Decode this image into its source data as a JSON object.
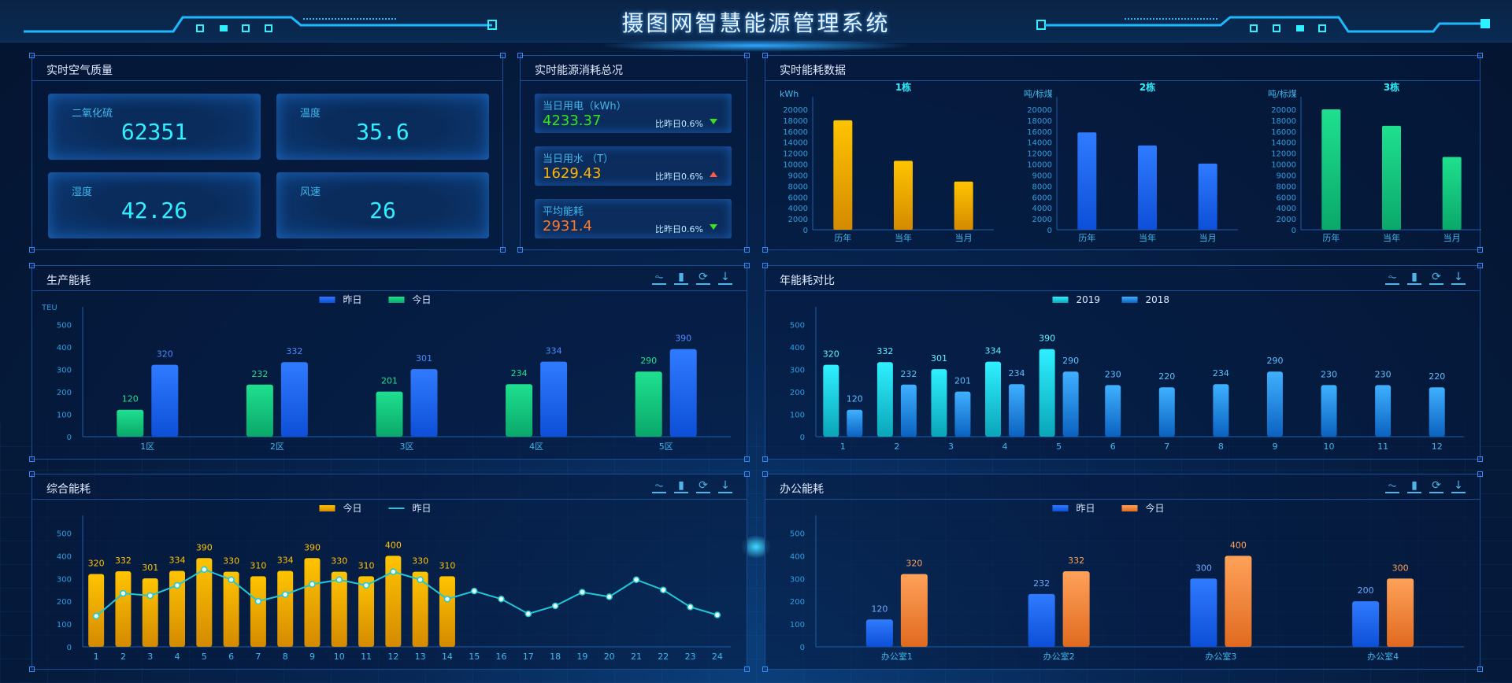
{
  "header": {
    "title": "摄图网智慧能源管理系统"
  },
  "air_quality": {
    "title": "实时空气质量",
    "items": [
      {
        "label": "二氧化硫",
        "value": "62351"
      },
      {
        "label": "温度",
        "value": "35.6"
      },
      {
        "label": "湿度",
        "value": "42.26"
      },
      {
        "label": "风速",
        "value": "26"
      }
    ]
  },
  "energy_summary": {
    "title": "实时能源消耗总况",
    "items": [
      {
        "label": "当日用电（kWh）",
        "value": "4233.37",
        "compare": "比昨日0.6%",
        "trend": "down",
        "color": "#35e51b"
      },
      {
        "label": "当日用水 （T）",
        "value": "1629.43",
        "compare": "比昨日0.6%",
        "trend": "up",
        "color": "#ffb400"
      },
      {
        "label": "平均能耗",
        "value": "2931.4",
        "compare": "比昨日0.6%",
        "trend": "down",
        "color": "#ff7a2a"
      }
    ]
  },
  "toolbar_icons": [
    "pulse-icon",
    "bar-chart-icon",
    "refresh-icon",
    "download-icon"
  ],
  "chart_data": {
    "realtime": {
      "type": "bar",
      "title": "实时能耗数据",
      "yticks": [
        0,
        2000,
        4000,
        6000,
        8000,
        9000,
        10000,
        12000,
        14000,
        16000,
        18000,
        20000
      ],
      "subcharts": [
        {
          "title": "1栋",
          "unit": "kWh",
          "categories": [
            "历年",
            "当年",
            "当月"
          ],
          "values": [
            18000,
            10600,
            8400
          ],
          "colors": [
            "#ffc400",
            "#d48a00"
          ]
        },
        {
          "title": "2栋",
          "unit": "吨/标煤",
          "categories": [
            "历年",
            "当年",
            "当月"
          ],
          "values": [
            15800,
            13400,
            10100
          ],
          "colors": [
            "#2f7bff",
            "#0d4fd8"
          ]
        },
        {
          "title": "3栋",
          "unit": "吨/标煤",
          "categories": [
            "历年",
            "当年",
            "当月"
          ],
          "values": [
            20000,
            17000,
            11300
          ],
          "colors": [
            "#1fe08f",
            "#0aa86a"
          ]
        }
      ]
    },
    "production": {
      "type": "bar",
      "title": "生产能耗",
      "ylabel": "TEU",
      "ylim": [
        0,
        500
      ],
      "yticks": [
        0,
        100,
        200,
        300,
        400,
        500
      ],
      "categories": [
        "1区",
        "2区",
        "3区",
        "4区",
        "5区"
      ],
      "legend": [
        {
          "name": "昨日",
          "colors": [
            "#2f7bff",
            "#0d4fd8"
          ]
        },
        {
          "name": "今日",
          "colors": [
            "#1fe08f",
            "#0aa86a"
          ]
        }
      ],
      "series": [
        {
          "name": "今日",
          "type": "bar",
          "values": [
            120,
            232,
            201,
            234,
            290
          ],
          "colors": [
            "#1fe08f",
            "#0aa86a"
          ],
          "label_color": "#1fe08f"
        },
        {
          "name": "昨日",
          "type": "bar",
          "values": [
            320,
            332,
            301,
            334,
            390
          ],
          "colors": [
            "#2f7bff",
            "#0d4fd8"
          ],
          "label_color": "#4a8cff"
        }
      ]
    },
    "annual": {
      "type": "bar",
      "title": "年能耗对比",
      "ylim": [
        0,
        500
      ],
      "yticks": [
        0,
        100,
        200,
        300,
        400,
        500
      ],
      "categories": [
        "1",
        "2",
        "3",
        "4",
        "5",
        "6",
        "7",
        "8",
        "9",
        "10",
        "11",
        "12"
      ],
      "legend": [
        {
          "name": "2019",
          "colors": [
            "#2ff0ff",
            "#0aa5b8"
          ]
        },
        {
          "name": "2018",
          "colors": [
            "#3fb0ff",
            "#0b62c0"
          ]
        }
      ],
      "series": [
        {
          "name": "2019",
          "type": "bar",
          "values": [
            320,
            332,
            301,
            334,
            390,
            null,
            null,
            null,
            null,
            null,
            null,
            null
          ],
          "colors": [
            "#2ff0ff",
            "#0aa5b8"
          ],
          "label_color": "#5ff3ff"
        },
        {
          "name": "2018",
          "type": "bar",
          "values": [
            120,
            232,
            201,
            234,
            290,
            230,
            220,
            234,
            290,
            230,
            230,
            220
          ],
          "colors": [
            "#3fb0ff",
            "#0b62c0"
          ],
          "label_color": "#5fc0ff"
        }
      ]
    },
    "composite": {
      "type": "bar+line",
      "title": "综合能耗",
      "ylim": [
        0,
        500
      ],
      "yticks": [
        0,
        100,
        200,
        300,
        400,
        500
      ],
      "categories": [
        "1",
        "2",
        "3",
        "4",
        "5",
        "6",
        "7",
        "8",
        "9",
        "10",
        "11",
        "12",
        "13",
        "14",
        "15",
        "16",
        "17",
        "18",
        "19",
        "20",
        "21",
        "22",
        "23",
        "24"
      ],
      "legend": [
        {
          "name": "今日",
          "colors": [
            "#ffc400",
            "#d48a00"
          ]
        },
        {
          "name": "昨日",
          "line": "#21c8d8"
        }
      ],
      "series": [
        {
          "name": "今日",
          "type": "bar",
          "values": [
            320,
            332,
            301,
            334,
            390,
            330,
            310,
            334,
            390,
            330,
            310,
            400,
            330,
            310
          ],
          "colors": [
            "#ffc400",
            "#d48a00"
          ],
          "label_color": "#ffc400"
        },
        {
          "name": "昨日",
          "type": "line",
          "values": [
            135,
            235,
            225,
            270,
            340,
            295,
            200,
            230,
            275,
            295,
            270,
            330,
            295,
            210,
            245,
            210,
            145,
            180,
            240,
            220,
            295,
            250,
            175,
            140
          ],
          "color": "#21c8d8"
        }
      ]
    },
    "office": {
      "type": "bar",
      "title": "办公能耗",
      "ylim": [
        0,
        500
      ],
      "yticks": [
        0,
        100,
        200,
        300,
        400,
        500
      ],
      "categories": [
        "办公室1",
        "办公室2",
        "办公室3",
        "办公室4"
      ],
      "legend": [
        {
          "name": "昨日",
          "colors": [
            "#2f7bff",
            "#0d4fd8"
          ]
        },
        {
          "name": "今日",
          "colors": [
            "#ffa15a",
            "#e06a1f"
          ]
        }
      ],
      "series": [
        {
          "name": "昨日",
          "type": "bar",
          "values": [
            120,
            232,
            300,
            200
          ],
          "colors": [
            "#2f7bff",
            "#0d4fd8"
          ],
          "label_color": "#6fa8ff"
        },
        {
          "name": "今日",
          "type": "bar",
          "values": [
            320,
            332,
            400,
            300
          ],
          "colors": [
            "#ffa15a",
            "#e06a1f"
          ],
          "label_color": "#ffa15a"
        }
      ]
    }
  }
}
